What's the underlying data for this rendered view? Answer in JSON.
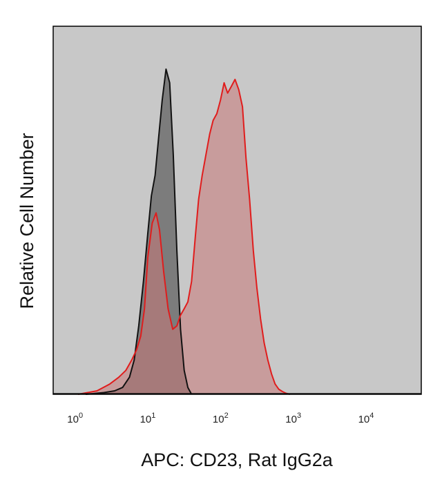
{
  "chart_data": {
    "type": "area",
    "xlabel": "APC: CD23, Rat IgG2a",
    "ylabel": "Relative Cell Number",
    "x_scale": "log",
    "xlim": [
      0.5,
      57500
    ],
    "ylim": [
      0,
      1
    ],
    "grid": false,
    "tick_labels": [
      {
        "value": 1,
        "base": "10",
        "exp": "0"
      },
      {
        "value": 10,
        "base": "10",
        "exp": "1"
      },
      {
        "value": 100,
        "base": "10",
        "exp": "2"
      },
      {
        "value": 1000,
        "base": "10",
        "exp": "3"
      },
      {
        "value": 10000,
        "base": "10",
        "exp": "4"
      }
    ],
    "colors": {
      "plot_background": "#c8c8c8",
      "control_fill": "#6e6e6e",
      "control_line": "#111111",
      "stained_fill": "#c87878",
      "stained_line": "#e01c1c"
    },
    "series": [
      {
        "x": [
          1.4,
          2.5,
          3.5,
          4.5,
          5.6,
          6.5,
          7.5,
          8.7,
          10,
          11.2,
          12.6,
          14.1,
          15.8,
          17.8,
          20,
          22.4,
          25.1,
          28.2,
          31.6,
          35.5,
          40
        ],
        "values": [
          0,
          0.005,
          0.01,
          0.02,
          0.05,
          0.1,
          0.2,
          0.33,
          0.47,
          0.58,
          0.64,
          0.75,
          0.86,
          0.95,
          0.91,
          0.7,
          0.42,
          0.19,
          0.07,
          0.02,
          0
        ]
      },
      {
        "x": [
          1.1,
          2,
          3,
          4,
          5,
          6,
          7,
          8,
          9,
          10,
          11.5,
          13,
          14.5,
          16.5,
          19,
          22,
          25.1,
          28,
          31.6,
          35.5,
          40,
          45,
          50,
          56,
          63,
          70.8,
          79,
          89,
          100,
          112,
          125,
          141,
          158,
          178,
          200,
          224,
          251,
          282,
          316,
          355,
          398,
          447,
          501,
          562,
          631,
          708,
          794,
          900
        ],
        "values": [
          0,
          0.01,
          0.03,
          0.05,
          0.07,
          0.1,
          0.13,
          0.17,
          0.25,
          0.4,
          0.5,
          0.53,
          0.48,
          0.36,
          0.25,
          0.19,
          0.2,
          0.23,
          0.25,
          0.27,
          0.33,
          0.46,
          0.57,
          0.64,
          0.7,
          0.76,
          0.8,
          0.82,
          0.86,
          0.91,
          0.88,
          0.9,
          0.92,
          0.89,
          0.84,
          0.69,
          0.57,
          0.42,
          0.31,
          0.22,
          0.15,
          0.1,
          0.06,
          0.03,
          0.015,
          0.008,
          0.003,
          0
        ]
      }
    ]
  }
}
